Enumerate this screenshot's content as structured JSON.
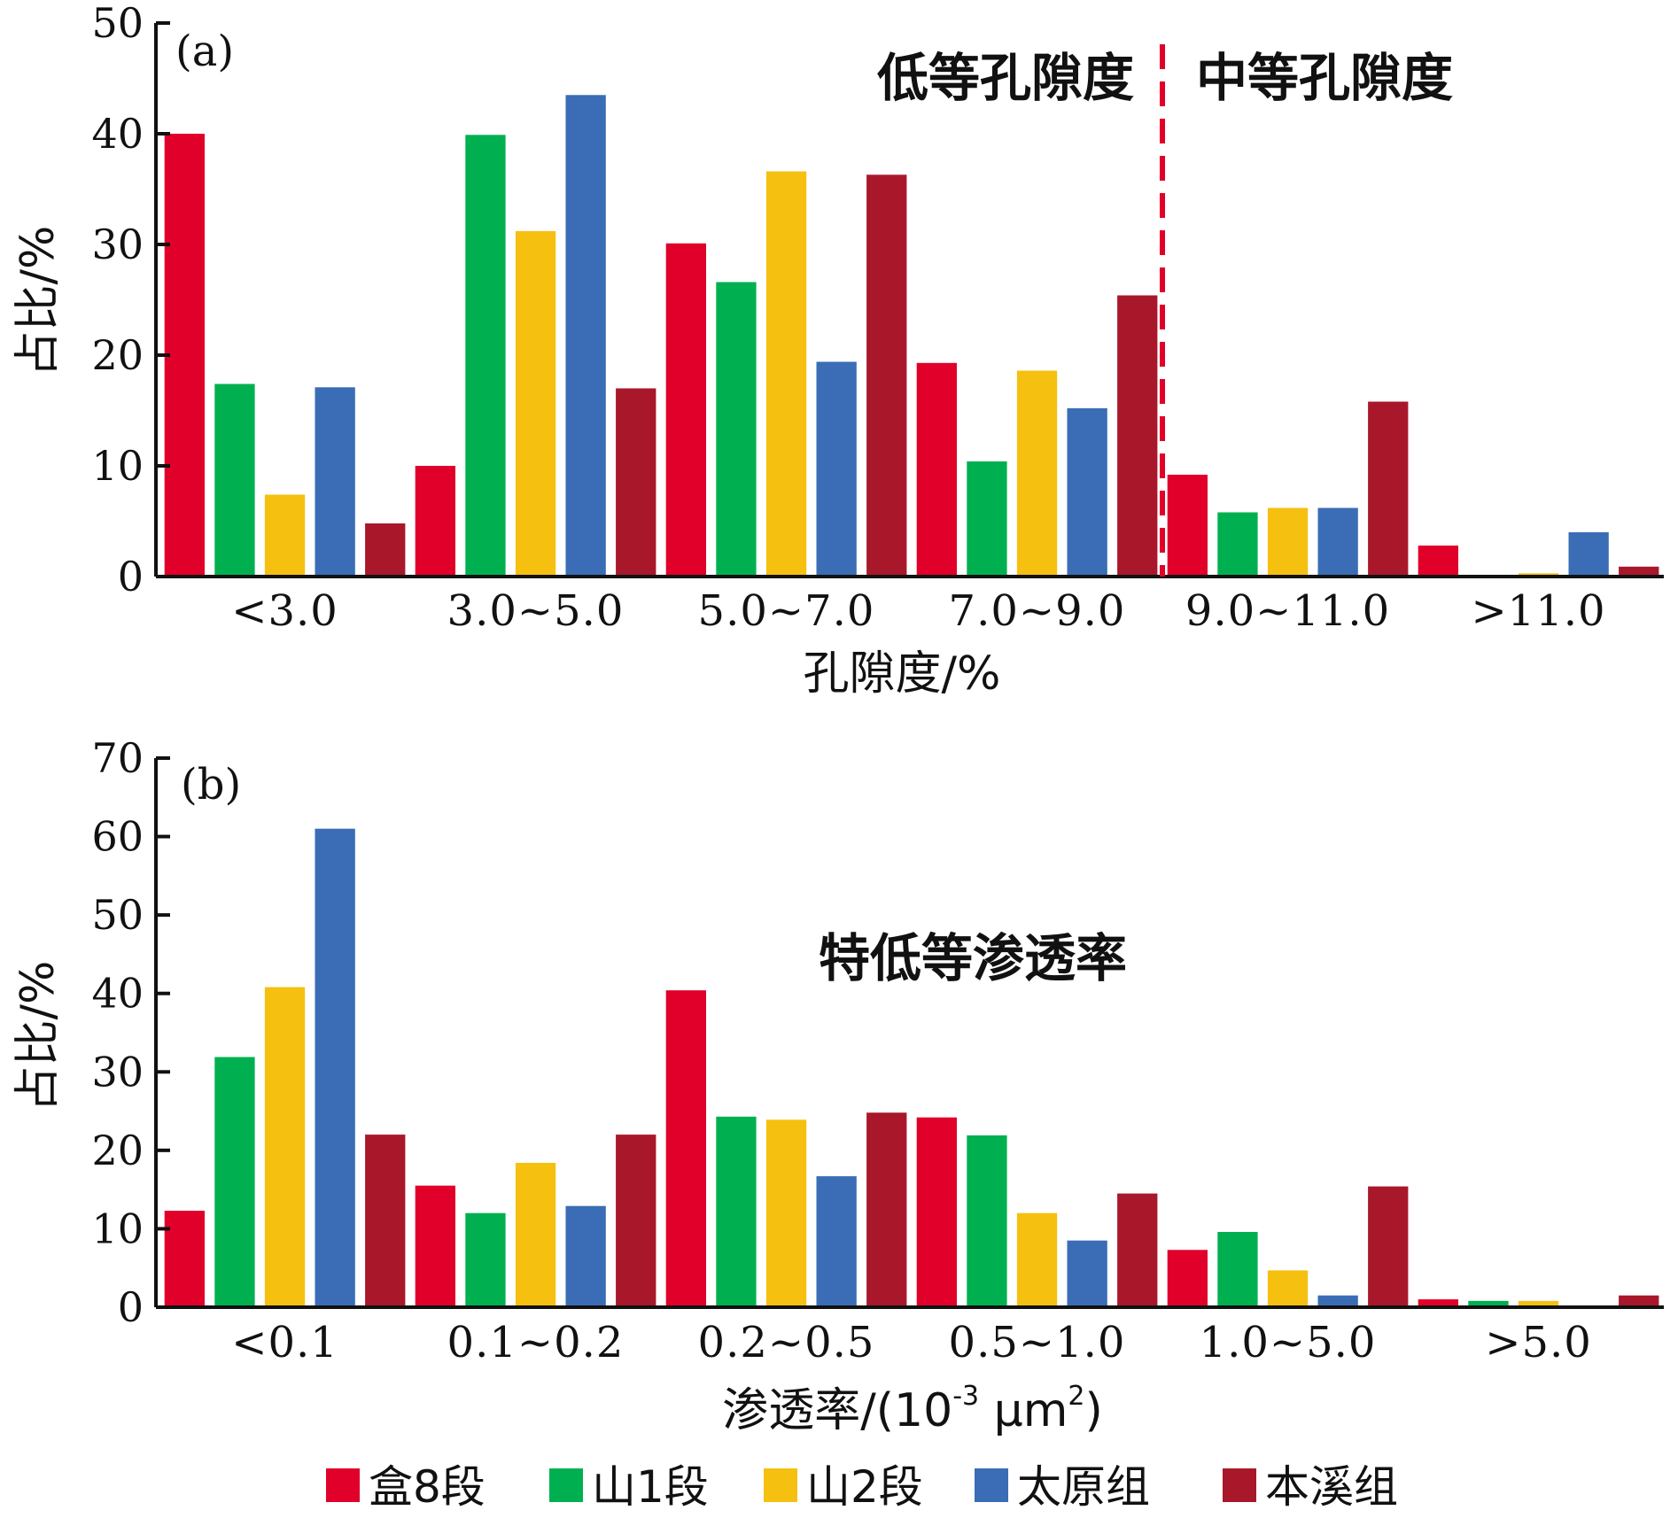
{
  "chart_data": [
    {
      "type": "bar",
      "panel_label": "(a)",
      "categories": [
        "<3.0",
        "3.0~5.0",
        "5.0~7.0",
        "7.0~9.0",
        "9.0~11.0",
        ">11.0"
      ],
      "xlabel": "孔隙度/%",
      "ylabel": "占比/%",
      "ylim": [
        0,
        50
      ],
      "yticks": [
        0,
        10,
        20,
        30,
        40,
        50
      ],
      "grid": false,
      "annotations": [
        "低等孔隙度",
        "中等孔隙度"
      ],
      "divider_after_category": 3,
      "series": [
        {
          "name": "盒8段",
          "values": [
            40.0,
            10.0,
            30.1,
            19.3,
            9.2,
            2.8
          ]
        },
        {
          "name": "山1段",
          "values": [
            17.4,
            39.9,
            26.6,
            10.4,
            5.8,
            0.0
          ]
        },
        {
          "name": "山2段",
          "values": [
            7.4,
            31.2,
            36.6,
            18.6,
            6.2,
            0.3
          ]
        },
        {
          "name": "太原组",
          "values": [
            17.1,
            43.5,
            19.4,
            15.2,
            6.2,
            4.0
          ]
        },
        {
          "name": "本溪组",
          "values": [
            4.8,
            17.0,
            36.3,
            25.4,
            15.8,
            0.9
          ]
        }
      ]
    },
    {
      "type": "bar",
      "panel_label": "(b)",
      "categories": [
        "<0.1",
        "0.1~0.2",
        "0.2~0.5",
        "0.5~1.0",
        "1.0~5.0",
        ">5.0"
      ],
      "xlabel_main": "渗透率/(10",
      "xlabel_sup1": "-3",
      "xlabel_mid": " μm",
      "xlabel_sup2": "2",
      "xlabel_end": ")",
      "ylabel": "占比/%",
      "ylim": [
        0,
        70
      ],
      "yticks": [
        0,
        10,
        20,
        30,
        40,
        50,
        60,
        70
      ],
      "grid": false,
      "annotations": [
        "特低等渗透率"
      ],
      "series": [
        {
          "name": "盒8段",
          "values": [
            12.3,
            15.5,
            40.4,
            24.2,
            7.3,
            1.0
          ]
        },
        {
          "name": "山1段",
          "values": [
            31.9,
            12.0,
            24.3,
            21.9,
            9.6,
            0.8
          ]
        },
        {
          "name": "山2段",
          "values": [
            40.8,
            18.4,
            23.9,
            12.0,
            4.7,
            0.8
          ]
        },
        {
          "name": "太原组",
          "values": [
            61.0,
            12.9,
            16.7,
            8.5,
            1.5,
            0.0
          ]
        },
        {
          "name": "本溪组",
          "values": [
            22.0,
            22.0,
            24.8,
            14.5,
            15.4,
            1.5
          ]
        }
      ]
    }
  ],
  "legend": {
    "placement": "bottom",
    "items": [
      {
        "label": "盒8段",
        "color": "#e0002a"
      },
      {
        "label": "山1段",
        "color": "#00b050"
      },
      {
        "label": "山2段",
        "color": "#f5c010"
      },
      {
        "label": "太原组",
        "color": "#3a6db5"
      },
      {
        "label": "本溪组",
        "color": "#a8182a"
      }
    ]
  },
  "colors": {
    "divider": "#e0002a",
    "axis": "#111111"
  }
}
